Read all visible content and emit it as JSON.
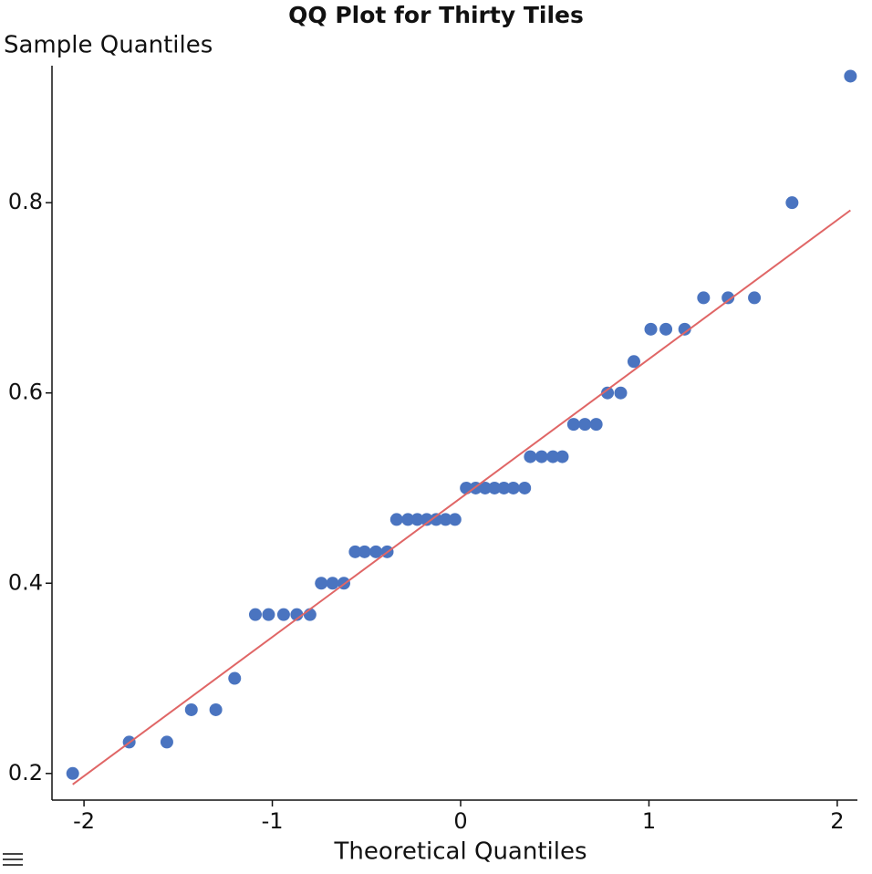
{
  "chart_data": {
    "type": "scatter",
    "title": "QQ Plot for Thirty Tiles",
    "x_label": "Theoretical Quantiles",
    "y_label": "Sample Quantiles",
    "xlim": [
      -2.17,
      2.107
    ],
    "ylim": [
      0.172,
      0.944
    ],
    "xticks": [
      -2,
      -1,
      0,
      1,
      2
    ],
    "yticks": [
      0.2,
      0.4,
      0.6,
      0.8
    ],
    "series": [
      {
        "color": "#4a74c0",
        "mode": "markers",
        "x": [
          -2.06,
          -1.76,
          -1.56,
          -1.43,
          -1.3,
          -1.2,
          -1.09,
          -1.02,
          -0.94,
          -0.87,
          -0.8,
          -0.74,
          -0.68,
          -0.62,
          -0.56,
          -0.51,
          -0.45,
          -0.39,
          -0.34,
          -0.28,
          -0.23,
          -0.18,
          -0.13,
          -0.08,
          -0.03,
          0.03,
          0.08,
          0.13,
          0.18,
          0.23,
          0.28,
          0.34,
          0.37,
          0.43,
          0.49,
          0.54,
          0.6,
          0.66,
          0.72,
          0.78,
          0.85,
          0.92,
          1.01,
          1.09,
          1.19,
          1.29,
          1.42,
          1.56,
          1.76,
          2.07
        ],
        "values": [
          0.2,
          0.233,
          0.233,
          0.267,
          0.267,
          0.3,
          0.367,
          0.367,
          0.367,
          0.367,
          0.367,
          0.4,
          0.4,
          0.4,
          0.433,
          0.433,
          0.433,
          0.433,
          0.467,
          0.467,
          0.467,
          0.467,
          0.467,
          0.467,
          0.467,
          0.5,
          0.5,
          0.5,
          0.5,
          0.5,
          0.5,
          0.5,
          0.533,
          0.533,
          0.533,
          0.533,
          0.567,
          0.567,
          0.567,
          0.6,
          0.6,
          0.633,
          0.667,
          0.667,
          0.667,
          0.7,
          0.7,
          0.7,
          0.8,
          0.933
        ]
      },
      {
        "color": "#e06666",
        "mode": "lines",
        "x": [
          -2.06,
          2.07
        ],
        "values": [
          0.1885,
          0.792
        ]
      }
    ]
  }
}
